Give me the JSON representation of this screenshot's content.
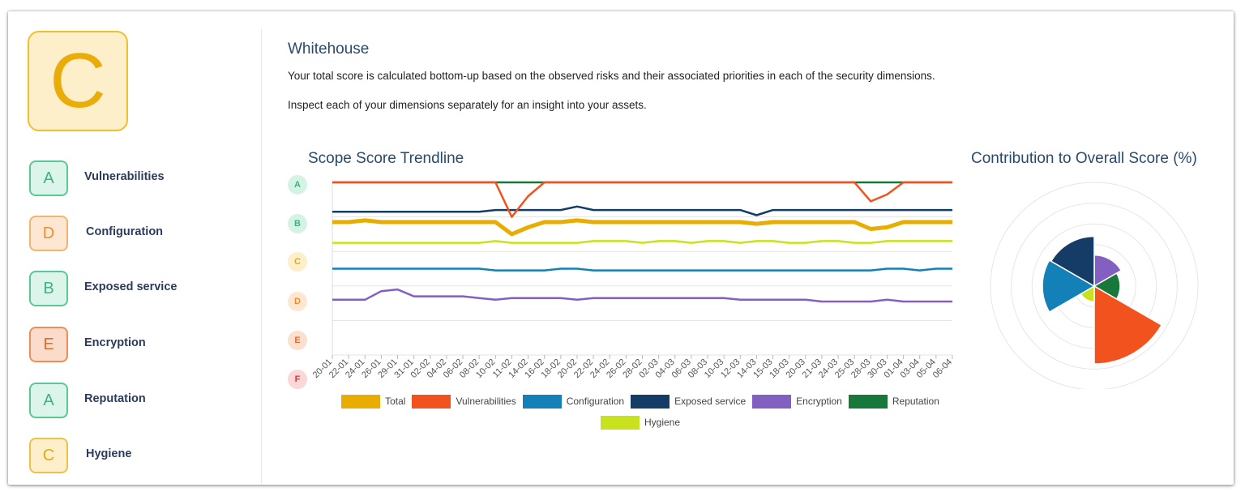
{
  "overall": {
    "grade": "C"
  },
  "dimensions": [
    {
      "grade": "A",
      "label": "Vulnerabilities"
    },
    {
      "grade": "D",
      "label": "Configuration"
    },
    {
      "grade": "B",
      "label": "Exposed service"
    },
    {
      "grade": "E",
      "label": "Encryption"
    },
    {
      "grade": "A",
      "label": "Reputation"
    },
    {
      "grade": "C",
      "label": "Hygiene"
    }
  ],
  "header": {
    "title": "Whitehouse",
    "desc1": "Your total score is calculated bottom-up based on the observed risks and their associated priorities in each of the security dimensions.",
    "desc2": "Inspect each of your dimensions separately for an insight into your assets."
  },
  "colors": {
    "Total": "#e8ad00",
    "Vulnerabilities": "#f2521d",
    "Configuration": "#1480b8",
    "Exposed service": "#143c66",
    "Encryption": "#8260c2",
    "Reputation": "#18773a",
    "Hygiene": "#c8e21e"
  },
  "chart_data": [
    {
      "type": "line",
      "title": "Scope Score Trendline",
      "y_labels": [
        "A",
        "B",
        "C",
        "D",
        "E",
        "F"
      ],
      "ylim": [
        0,
        100
      ],
      "categories": [
        "20-01",
        "22-01",
        "24-01",
        "26-01",
        "29-01",
        "31-01",
        "02-02",
        "04-02",
        "06-02",
        "08-02",
        "10-02",
        "11-02",
        "14-02",
        "16-02",
        "18-02",
        "20-02",
        "22-02",
        "24-02",
        "26-02",
        "28-02",
        "02-03",
        "04-03",
        "06-03",
        "08-03",
        "10-03",
        "12-03",
        "14-03",
        "15-03",
        "18-03",
        "20-03",
        "21-03",
        "24-03",
        "25-03",
        "28-03",
        "30-03",
        "01-04",
        "03-04",
        "05-04",
        "06-04"
      ],
      "series": [
        {
          "name": "Total",
          "values": [
            77,
            77,
            78,
            77,
            77,
            77,
            77,
            77,
            77,
            77,
            77,
            70,
            74,
            77,
            77,
            78,
            77,
            77,
            77,
            77,
            77,
            77,
            77,
            77,
            77,
            77,
            76,
            77,
            77,
            77,
            77,
            77,
            77,
            73,
            74,
            77,
            77,
            77,
            77
          ]
        },
        {
          "name": "Vulnerabilities",
          "values": [
            100,
            100,
            100,
            100,
            100,
            100,
            100,
            100,
            100,
            100,
            100,
            80,
            92,
            100,
            100,
            100,
            100,
            100,
            100,
            100,
            100,
            100,
            100,
            100,
            100,
            100,
            100,
            100,
            100,
            100,
            100,
            100,
            100,
            89,
            93,
            100,
            100,
            100,
            100
          ]
        },
        {
          "name": "Configuration",
          "values": [
            50,
            50,
            50,
            50,
            50,
            50,
            50,
            50,
            50,
            50,
            49,
            49,
            49,
            49,
            50,
            50,
            49,
            49,
            49,
            49,
            49,
            49,
            49,
            49,
            49,
            49,
            49,
            49,
            49,
            49,
            49,
            49,
            49,
            49,
            50,
            50,
            49,
            50,
            50
          ]
        },
        {
          "name": "Exposed service",
          "values": [
            83,
            83,
            83,
            83,
            83,
            83,
            83,
            83,
            83,
            83,
            84,
            84,
            84,
            84,
            84,
            86,
            84,
            84,
            84,
            84,
            84,
            84,
            84,
            84,
            84,
            84,
            81,
            84,
            84,
            84,
            84,
            84,
            84,
            84,
            84,
            84,
            84,
            84,
            84
          ]
        },
        {
          "name": "Encryption",
          "values": [
            32,
            32,
            32,
            37,
            38,
            34,
            34,
            34,
            34,
            33,
            32,
            33,
            33,
            33,
            33,
            32,
            33,
            33,
            33,
            33,
            33,
            33,
            33,
            33,
            33,
            32,
            32,
            32,
            32,
            32,
            31,
            31,
            31,
            31,
            32,
            31,
            31,
            31,
            31
          ]
        },
        {
          "name": "Reputation",
          "values": [
            100,
            100,
            100,
            100,
            100,
            100,
            100,
            100,
            100,
            100,
            100,
            100,
            100,
            100,
            100,
            100,
            100,
            100,
            100,
            100,
            100,
            100,
            100,
            100,
            100,
            100,
            100,
            100,
            100,
            100,
            100,
            100,
            100,
            100,
            100,
            100,
            100,
            100,
            100
          ]
        },
        {
          "name": "Hygiene",
          "values": [
            65,
            65,
            65,
            65,
            65,
            65,
            65,
            65,
            65,
            65,
            66,
            65,
            65,
            65,
            65,
            65,
            66,
            66,
            66,
            65,
            66,
            66,
            65,
            66,
            66,
            65,
            66,
            66,
            65,
            65,
            66,
            66,
            65,
            65,
            66,
            66,
            66,
            66,
            66
          ]
        }
      ]
    },
    {
      "type": "pie",
      "subtype": "polar-area",
      "title": "Contribution to Overall Score (%)",
      "rmax": 100,
      "series": [
        {
          "name": "Encryption",
          "value": 30
        },
        {
          "name": "Reputation",
          "value": 25
        },
        {
          "name": "Vulnerabilities",
          "value": 75
        },
        {
          "name": "Hygiene",
          "value": 15
        },
        {
          "name": "Configuration",
          "value": 50
        },
        {
          "name": "Exposed service",
          "value": 48
        }
      ]
    }
  ]
}
